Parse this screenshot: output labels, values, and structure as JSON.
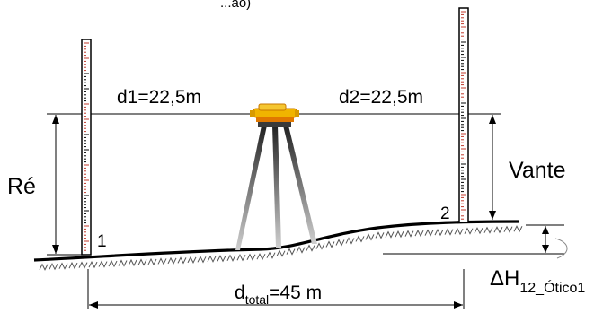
{
  "caption_fragment": "...ão)",
  "labels": {
    "d1": "d1=22,5m",
    "d2": "d2=22,5m",
    "re": "Ré",
    "vante": "Vante",
    "point1": "1",
    "point2": "2",
    "delta_h_main": "ΔH",
    "delta_h_sub": "12_Ótico1",
    "d_total_main": "d",
    "d_total_sub": "total",
    "d_total_rest": "=45 m"
  },
  "colors": {
    "line": "#000000",
    "staff_tick": "#c0392b",
    "instrument_body": "#f0b400",
    "instrument_accent": "#c87800",
    "tripod": "#444444",
    "hatch": "#555555"
  }
}
